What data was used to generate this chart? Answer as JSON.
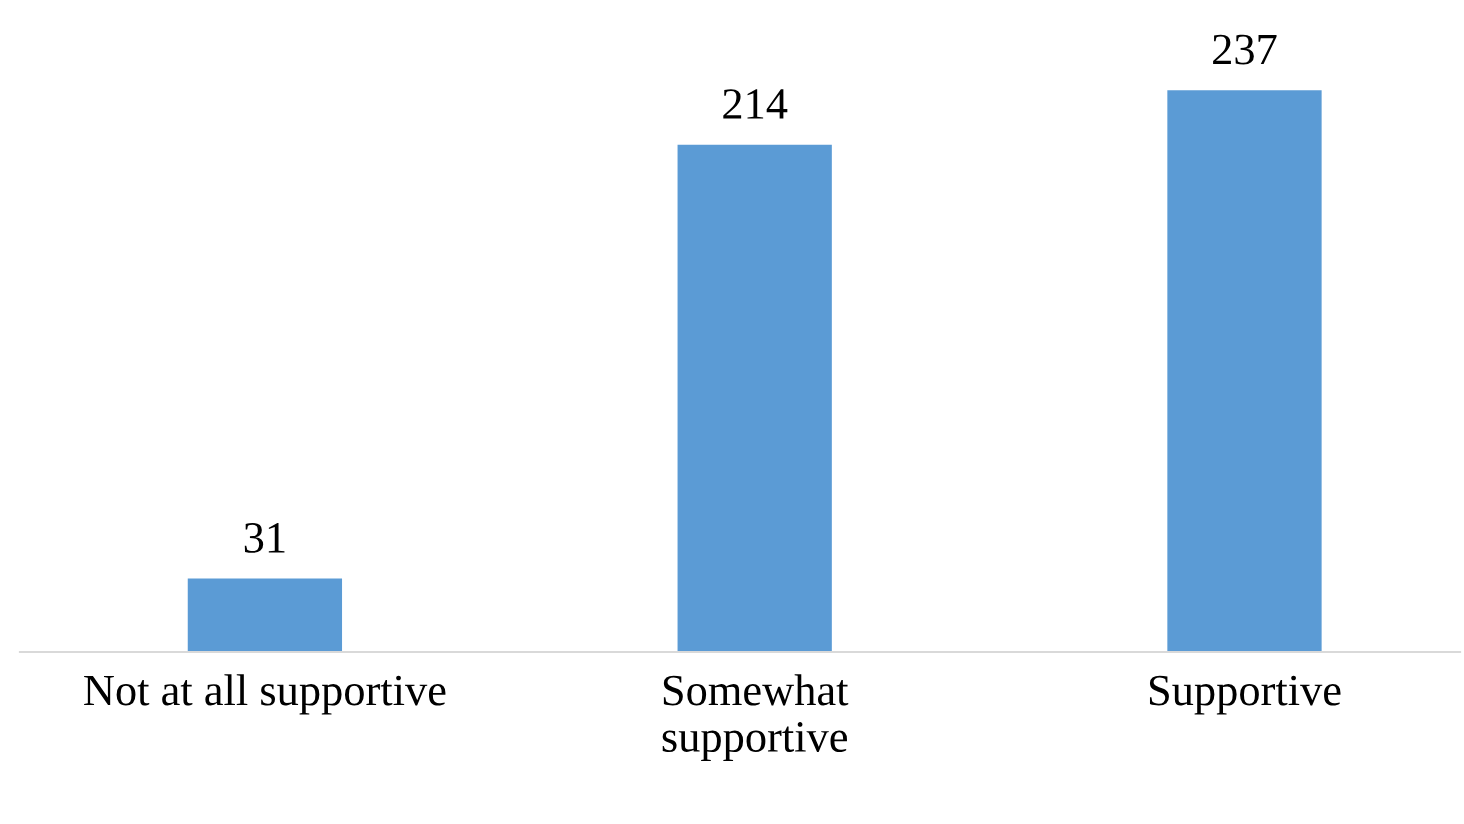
{
  "chart_data": {
    "type": "bar",
    "categories": [
      "Not at all supportive",
      "Somewhat\nsupportive",
      "Supportive"
    ],
    "values": [
      31,
      214,
      237
    ],
    "color": "#5b9bd5",
    "data_labels": true,
    "grid": false,
    "legend": false
  }
}
